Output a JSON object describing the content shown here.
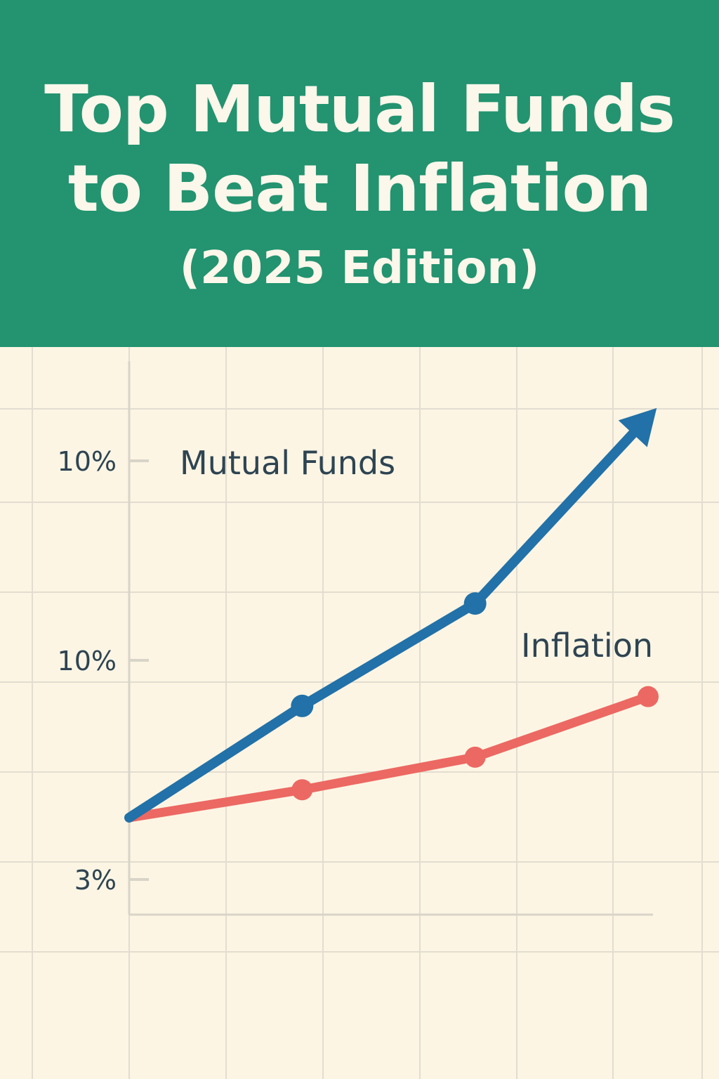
{
  "header": {
    "title_line1": "Top Mutual Funds",
    "title_line2": "to Beat Inflation",
    "subtitle": "(2025 Edition)"
  },
  "colors": {
    "header_bg": "#239370",
    "header_text": "#fbf7ea",
    "background": "#fcf5e4",
    "grid": "#e2ddd0",
    "axis": "#d8d4c8",
    "mutual_funds": "#2271a8",
    "inflation": "#ec6862",
    "label_text": "#2e4452"
  },
  "chart_data": {
    "type": "line",
    "title": "Top Mutual Funds to Beat Inflation (2025 Edition)",
    "xlabel": "",
    "ylabel": "",
    "y_tick_labels": [
      "10%",
      "10%",
      "3%"
    ],
    "grid": true,
    "arrow_on_series": "Mutual Funds",
    "series": [
      {
        "name": "Mutual Funds",
        "x": [
          0,
          1,
          2,
          3
        ],
        "values": [
          4.0,
          6.4,
          8.6,
          12.6
        ]
      },
      {
        "name": "Inflation",
        "x": [
          0,
          1,
          2,
          3
        ],
        "values": [
          4.0,
          4.6,
          5.3,
          6.6
        ]
      }
    ],
    "xlim": [
      0,
      3
    ],
    "ylim": [
      1.5,
      14
    ]
  }
}
